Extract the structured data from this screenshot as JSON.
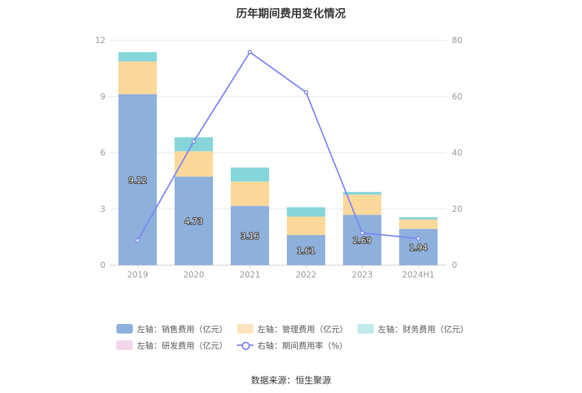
{
  "chart_data": {
    "type": "bar",
    "title": "历年期间费用变化情况",
    "source": "数据来源：恒生聚源",
    "categories": [
      "2019",
      "2020",
      "2021",
      "2022",
      "2023",
      "2024H1"
    ],
    "left_axis": {
      "ylim": [
        0,
        12
      ],
      "ticks": [
        "0",
        "3",
        "6",
        "9",
        "12"
      ]
    },
    "right_axis": {
      "ylim": [
        0,
        80
      ],
      "ticks": [
        "0",
        "20",
        "40",
        "60",
        "80"
      ]
    },
    "grid": true,
    "legend_position": "bottom",
    "stacked_series": [
      {
        "name": "左轴：销售费用（亿元）",
        "color": "#8eb0dc",
        "values": [
          9.12,
          4.73,
          3.16,
          1.61,
          2.69,
          1.94
        ],
        "show_labels": true
      },
      {
        "name": "左轴：管理费用（亿元）",
        "color": "#fdd89b",
        "values": [
          1.75,
          1.35,
          1.3,
          0.98,
          1.07,
          0.5
        ],
        "show_labels": false
      },
      {
        "name": "左轴：财务费用（亿元）",
        "color": "#86d6d9",
        "values": [
          0.5,
          0.75,
          0.75,
          0.5,
          0.15,
          0.12
        ],
        "show_labels": false
      },
      {
        "name": "左轴：研发费用（亿元）",
        "color": "#f3d5ec",
        "values": [
          0,
          0,
          0,
          0,
          0,
          0
        ],
        "show_labels": false
      }
    ],
    "line_series": {
      "name": "右轴：期间费用率（%）",
      "color": "#7b83f2",
      "values": [
        8.8,
        44.0,
        75.8,
        61.5,
        11.5,
        9.5
      ]
    },
    "value_labels": [
      "9.12",
      "4.73",
      "3.16",
      "1.61",
      "2.69",
      "1.94"
    ]
  }
}
